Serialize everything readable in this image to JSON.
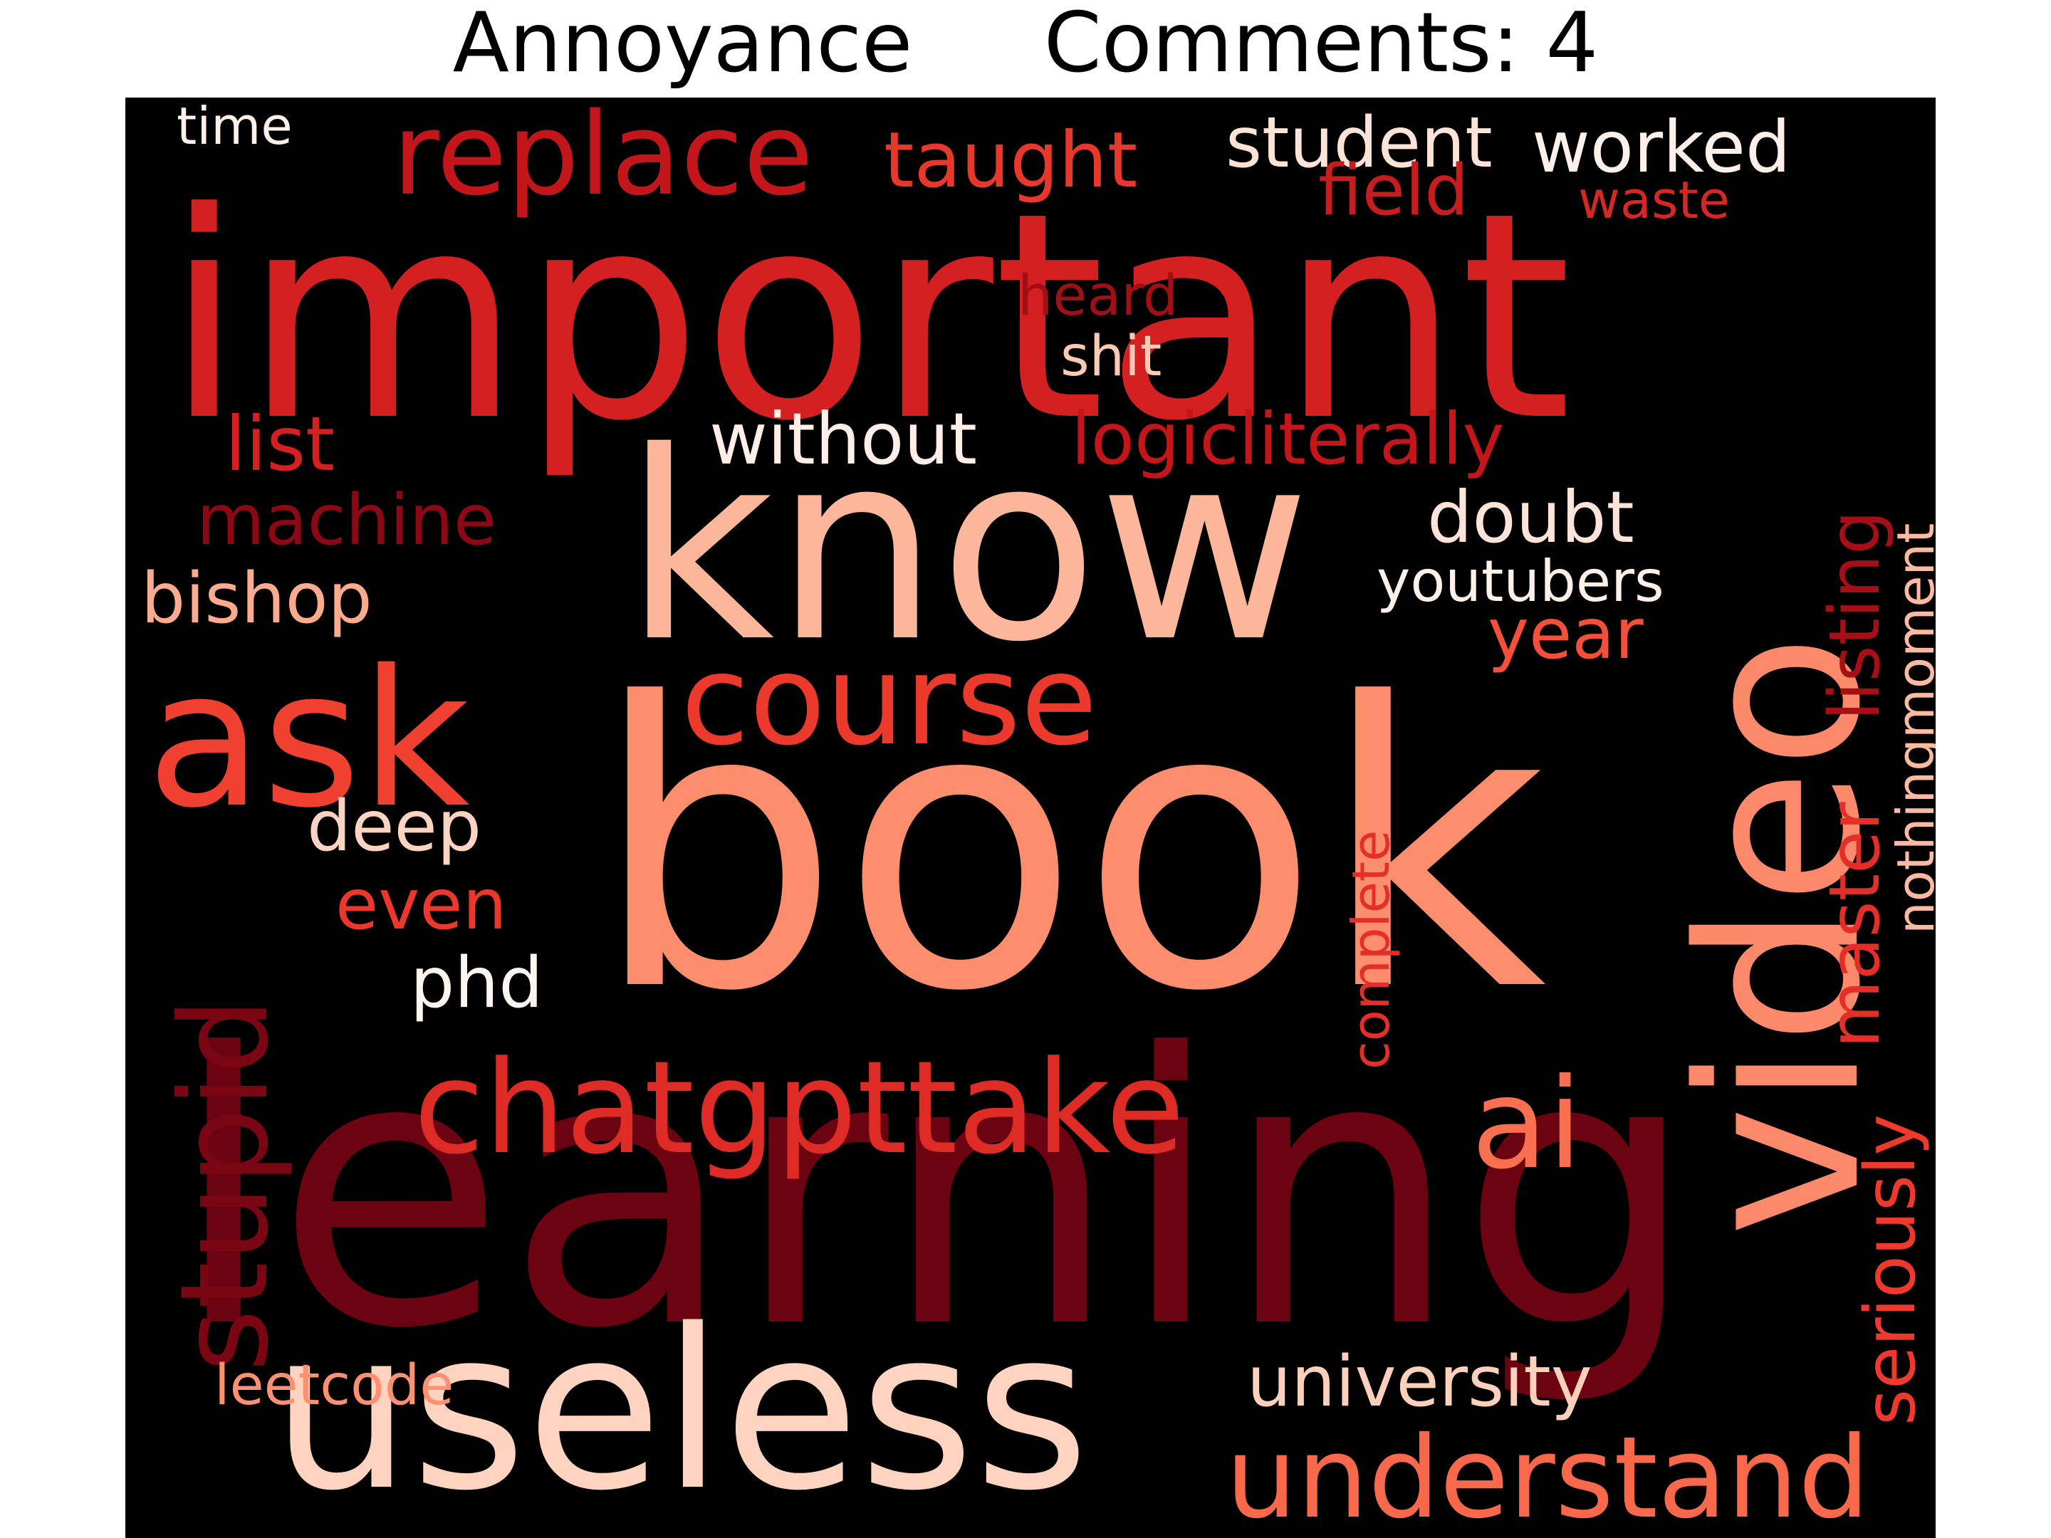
{
  "title": {
    "label": "Annoyance",
    "comments": "Comments: 4"
  },
  "words": [
    {
      "id": "important",
      "text": "important",
      "color": "#d42020"
    },
    {
      "id": "know",
      "text": "know",
      "color": "#fcb79b"
    },
    {
      "id": "book",
      "text": "book",
      "color": "#fc8d6d"
    },
    {
      "id": "learning",
      "text": "learning",
      "color": "#6b0311"
    },
    {
      "id": "ask",
      "text": "ask",
      "color": "#f0402f"
    },
    {
      "id": "video",
      "text": "video",
      "color": "#fc8a6a"
    },
    {
      "id": "useless",
      "text": "useless",
      "color": "#fed3c0"
    },
    {
      "id": "understand",
      "text": "understand",
      "color": "#f7694a"
    },
    {
      "id": "chatgpttake",
      "text": "chatgpttake",
      "color": "#de2b25"
    },
    {
      "id": "course",
      "text": "course",
      "color": "#eb3a2c"
    },
    {
      "id": "replace",
      "text": "replace",
      "color": "#c3161b"
    },
    {
      "id": "stupid",
      "text": "stupid",
      "color": "#7a0513"
    },
    {
      "id": "ai",
      "text": "ai",
      "color": "#f8704f"
    },
    {
      "id": "taught",
      "text": "taught",
      "color": "#e7382b"
    },
    {
      "id": "student",
      "text": "student",
      "color": "#fee3d6"
    },
    {
      "id": "worked",
      "text": "worked",
      "color": "#fff1ea"
    },
    {
      "id": "field",
      "text": "field",
      "color": "#c81d1f"
    },
    {
      "id": "waste",
      "text": "waste",
      "color": "#d62822"
    },
    {
      "id": "time",
      "text": "time",
      "color": "#fff1ea"
    },
    {
      "id": "heard",
      "text": "heard",
      "color": "#a00f16"
    },
    {
      "id": "shit",
      "text": "shit",
      "color": "#fcc9b3"
    },
    {
      "id": "list",
      "text": "list",
      "color": "#d42020"
    },
    {
      "id": "without",
      "text": "without",
      "color": "#ffefe8"
    },
    {
      "id": "logicliterally",
      "text": "logicliterally",
      "color": "#c3161b"
    },
    {
      "id": "machine",
      "text": "machine",
      "color": "#8b0915"
    },
    {
      "id": "doubt",
      "text": "doubt",
      "color": "#fee4d8"
    },
    {
      "id": "bishop",
      "text": "bishop",
      "color": "#fcab8f"
    },
    {
      "id": "youtubers",
      "text": "youtubers",
      "color": "#fff1ea"
    },
    {
      "id": "year",
      "text": "year",
      "color": "#f44f39"
    },
    {
      "id": "listing",
      "text": "listing",
      "color": "#a50f15"
    },
    {
      "id": "nothingmoment",
      "text": "nothingmoment",
      "color": "#fcbba1"
    },
    {
      "id": "deep",
      "text": "deep",
      "color": "#fdd4c2"
    },
    {
      "id": "even",
      "text": "even",
      "color": "#ec382b"
    },
    {
      "id": "phd",
      "text": "phd",
      "color": "#fff5f0"
    },
    {
      "id": "master",
      "text": "master",
      "color": "#e32f27"
    },
    {
      "id": "complete",
      "text": "complete",
      "color": "#e32f27"
    },
    {
      "id": "seriously",
      "text": "seriously",
      "color": "#ee3a2c"
    },
    {
      "id": "university",
      "text": "university",
      "color": "#fdd0bc"
    },
    {
      "id": "leetcode",
      "text": "leetcode",
      "color": "#fc9070"
    }
  ]
}
